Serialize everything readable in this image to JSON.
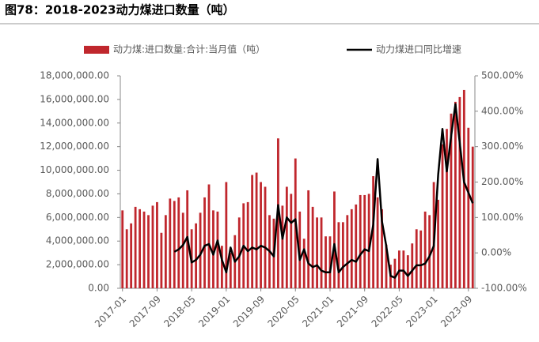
{
  "chart_data": {
    "type": "bar_line",
    "title": "图78：2018-2023动力煤进口数量（吨）",
    "categories": [
      "2017-01",
      null,
      null,
      null,
      null,
      null,
      null,
      null,
      "2017-09",
      null,
      null,
      null,
      null,
      null,
      null,
      null,
      "2018-05",
      null,
      null,
      null,
      null,
      null,
      null,
      null,
      "2019-01",
      null,
      null,
      null,
      null,
      null,
      null,
      null,
      "2019-09",
      null,
      null,
      null,
      null,
      null,
      null,
      null,
      "2020-05",
      null,
      null,
      null,
      null,
      null,
      null,
      null,
      "2021-01",
      null,
      null,
      null,
      null,
      null,
      null,
      null,
      "2021-09",
      null,
      null,
      null,
      null,
      null,
      null,
      null,
      "2022-05",
      null,
      null,
      null,
      null,
      null,
      null,
      null,
      "2023-01",
      null,
      null,
      null,
      null,
      null,
      null,
      null,
      "2023-09",
      null
    ],
    "series": [
      {
        "name": "动力煤:进口数量:合计:当月值（吨）",
        "color": "#c0272d",
        "values": [
          6600000,
          5000000,
          5500000,
          6900000,
          6700000,
          6500000,
          6200000,
          7000000,
          7300000,
          4700000,
          6200000,
          7600000,
          7400000,
          7700000,
          6400000,
          8300000,
          5000000,
          5500000,
          6400000,
          7700000,
          8800000,
          6600000,
          6500000,
          3600000,
          9000000,
          3000000,
          4500000,
          6000000,
          7200000,
          7300000,
          9600000,
          9800000,
          9000000,
          8600000,
          6200000,
          5900000,
          12700000,
          7000000,
          8600000,
          8000000,
          11000000,
          6500000,
          4200000,
          8300000,
          6900000,
          6000000,
          6000000,
          4400000,
          4400000,
          8200000,
          5600000,
          5600000,
          6200000,
          6700000,
          7100000,
          7900000,
          7900000,
          8000000,
          9500000,
          7700000,
          6700000,
          3700000,
          2000000,
          2500000,
          3200000,
          3200000,
          2800000,
          3800000,
          5000000,
          4900000,
          6500000,
          6200000,
          9000000,
          7500000,
          12200000,
          13500000,
          14800000,
          15800000,
          16200000,
          16800000,
          13600000,
          12000000
        ]
      },
      {
        "name": "动力煤进口同比增速",
        "color": "#000000",
        "axis": "y2",
        "values": [
          null,
          null,
          null,
          null,
          null,
          null,
          null,
          null,
          null,
          null,
          null,
          null,
          3,
          10,
          22,
          45,
          -27,
          -20,
          -5,
          20,
          25,
          -5,
          35,
          -20,
          -55,
          15,
          -25,
          -10,
          20,
          5,
          15,
          10,
          20,
          15,
          5,
          -10,
          135,
          40,
          100,
          85,
          95,
          -20,
          10,
          -30,
          -40,
          -35,
          -50,
          -55,
          -55,
          25,
          -55,
          -40,
          -30,
          -20,
          -25,
          -5,
          10,
          5,
          80,
          265,
          90,
          20,
          -65,
          -70,
          -50,
          -50,
          -65,
          -50,
          -35,
          -35,
          -30,
          -10,
          20,
          220,
          350,
          230,
          330,
          420,
          310,
          200,
          170,
          140
        ]
      }
    ],
    "ylim": [
      0,
      18000000
    ],
    "yticks": [
      {
        "value": 0,
        "label": "0.00"
      },
      {
        "value": 2000000,
        "label": "2,000,000.00"
      },
      {
        "value": 4000000,
        "label": "4,000,000.00"
      },
      {
        "value": 6000000,
        "label": "6,000,000.00"
      },
      {
        "value": 8000000,
        "label": "8,000,000.00"
      },
      {
        "value": 10000000,
        "label": "10,000,000.00"
      },
      {
        "value": 12000000,
        "label": "12,000,000.00"
      },
      {
        "value": 14000000,
        "label": "14,000,000.00"
      },
      {
        "value": 16000000,
        "label": "16,000,000.00"
      },
      {
        "value": 18000000,
        "label": "18,000,000.00"
      }
    ],
    "y2lim": [
      -100,
      500
    ],
    "y2ticks": [
      {
        "value": -100,
        "label": "-100.00%"
      },
      {
        "value": 0,
        "label": "0.00%"
      },
      {
        "value": 100,
        "label": "100.00%"
      },
      {
        "value": 200,
        "label": "200.00%"
      },
      {
        "value": 300,
        "label": "300.00%"
      },
      {
        "value": 400,
        "label": "400.00%"
      },
      {
        "value": 500,
        "label": "500.00%"
      }
    ]
  }
}
